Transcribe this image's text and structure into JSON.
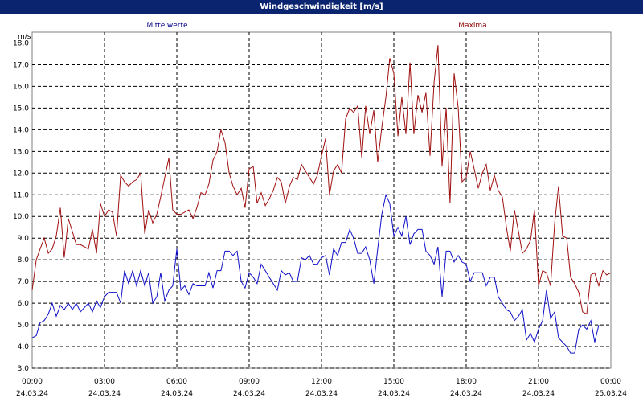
{
  "window": {
    "title": "Windgeschwindigkeit [m/s]"
  },
  "colors": {
    "titlebar": "#0a2470",
    "mean": "#1010c8",
    "max": "#a01010",
    "grid": "#000000"
  },
  "chart_data": {
    "type": "line",
    "title": "Windgeschwindigkeit [m/s]",
    "ylabel": "m/s",
    "ylim": [
      3.0,
      18.5
    ],
    "yticks": [
      "3,0",
      "4,0",
      "5,0",
      "6,0",
      "7,0",
      "8,0",
      "9,0",
      "10,0",
      "11,0",
      "12,0",
      "13,0",
      "14,0",
      "15,0",
      "16,0",
      "17,0",
      "18,0"
    ],
    "xticks": [
      {
        "time": "00:00",
        "date": "24.03.24"
      },
      {
        "time": "03:00",
        "date": "24.03.24"
      },
      {
        "time": "06:00",
        "date": "24.03.24"
      },
      {
        "time": "09:00",
        "date": "24.03.24"
      },
      {
        "time": "12:00",
        "date": "24.03.24"
      },
      {
        "time": "15:00",
        "date": "24.03.24"
      },
      {
        "time": "18:00",
        "date": "24.03.24"
      },
      {
        "time": "21:00",
        "date": "24.03.24"
      },
      {
        "time": "00:00",
        "date": "25.03.24"
      }
    ],
    "grid": true,
    "legend_position": "top",
    "x_hours": [
      0,
      0.17,
      0.33,
      0.5,
      0.67,
      0.83,
      1,
      1.17,
      1.33,
      1.5,
      1.67,
      1.83,
      2,
      2.17,
      2.33,
      2.5,
      2.67,
      2.83,
      3,
      3.17,
      3.33,
      3.5,
      3.67,
      3.83,
      4,
      4.17,
      4.33,
      4.5,
      4.67,
      4.83,
      5,
      5.17,
      5.33,
      5.5,
      5.67,
      5.83,
      6,
      6.17,
      6.33,
      6.5,
      6.67,
      6.83,
      7,
      7.17,
      7.33,
      7.5,
      7.67,
      7.83,
      8,
      8.17,
      8.33,
      8.5,
      8.67,
      8.83,
      9,
      9.17,
      9.33,
      9.5,
      9.67,
      9.83,
      10,
      10.17,
      10.33,
      10.5,
      10.67,
      10.83,
      11,
      11.17,
      11.33,
      11.5,
      11.67,
      11.83,
      12,
      12.17,
      12.33,
      12.5,
      12.67,
      12.83,
      13,
      13.17,
      13.33,
      13.5,
      13.67,
      13.83,
      14,
      14.17,
      14.33,
      14.5,
      14.67,
      14.83,
      15,
      15.17,
      15.33,
      15.5,
      15.67,
      15.83,
      16,
      16.17,
      16.33,
      16.5,
      16.67,
      16.83,
      17,
      17.17,
      17.33,
      17.5,
      17.67,
      17.83,
      18,
      18.17,
      18.33,
      18.5,
      18.67,
      18.83,
      19,
      19.17,
      19.33,
      19.5,
      19.67,
      19.83,
      20,
      20.17,
      20.33,
      20.5,
      20.67,
      20.83,
      21,
      21.17,
      21.33,
      21.5,
      21.67,
      21.83,
      22,
      22.17,
      22.33,
      22.5,
      22.67,
      22.83,
      23,
      23.17,
      23.33,
      23.5,
      23.67,
      23.83,
      24
    ],
    "series": [
      {
        "name": "Mittelwerte",
        "color": "#1010c8",
        "values": [
          4.4,
          4.5,
          5.1,
          5.2,
          5.5,
          6.0,
          5.4,
          5.9,
          5.7,
          6.0,
          5.7,
          6.0,
          5.6,
          5.8,
          6.0,
          5.6,
          6.1,
          5.8,
          6.3,
          6.5,
          6.5,
          6.5,
          6.0,
          7.5,
          6.9,
          7.5,
          6.8,
          7.5,
          6.8,
          7.4,
          6.0,
          6.3,
          7.4,
          6.1,
          6.6,
          6.8,
          8.5,
          6.6,
          6.8,
          6.4,
          6.9,
          6.8,
          6.8,
          6.8,
          7.4,
          6.7,
          7.5,
          7.5,
          8.4,
          8.4,
          8.2,
          8.4,
          7.0,
          6.7,
          7.4,
          7.2,
          6.9,
          7.8,
          7.5,
          7.2,
          6.9,
          6.6,
          7.5,
          7.3,
          7.4,
          7.0,
          7.0,
          8.1,
          8.0,
          8.2,
          7.8,
          7.8,
          8.1,
          8.2,
          7.3,
          8.5,
          8.2,
          8.8,
          8.8,
          9.4,
          9.0,
          8.3,
          8.3,
          8.6,
          8.0,
          6.9,
          8.5,
          10.1,
          11.0,
          10.6,
          9.1,
          9.5,
          9.1,
          10.0,
          8.7,
          9.2,
          9.4,
          9.4,
          8.4,
          8.2,
          7.8,
          8.6,
          6.3,
          8.4,
          8.4,
          7.9,
          8.2,
          7.9,
          7.8,
          7.0,
          7.4,
          7.4,
          7.4,
          6.8,
          7.2,
          7.2,
          6.3,
          6.0,
          5.7,
          5.6,
          5.2,
          5.4,
          5.7,
          4.3,
          4.6,
          4.2,
          4.8,
          5.2,
          6.6,
          5.3,
          5.6,
          4.4,
          4.2,
          4.0,
          3.7,
          3.7,
          4.8,
          5.0,
          4.8,
          5.2,
          4.2,
          5.0
        ]
      },
      {
        "name": "Maxima",
        "color": "#a01010",
        "values": [
          6.6,
          8.0,
          8.5,
          9.0,
          8.3,
          8.5,
          9.1,
          10.4,
          8.1,
          9.9,
          9.3,
          8.7,
          8.7,
          8.6,
          8.5,
          9.4,
          8.3,
          10.6,
          10.0,
          10.3,
          10.2,
          9.1,
          11.9,
          11.6,
          11.4,
          11.6,
          11.7,
          12.0,
          9.2,
          10.3,
          9.7,
          10.1,
          10.9,
          11.8,
          12.7,
          10.3,
          10.1,
          10.1,
          10.2,
          10.3,
          9.9,
          10.4,
          11.1,
          11.0,
          11.5,
          12.6,
          13.0,
          14.0,
          13.4,
          12.0,
          11.4,
          11.0,
          11.3,
          10.4,
          12.2,
          12.3,
          10.6,
          11.1,
          10.5,
          10.8,
          11.2,
          11.8,
          11.6,
          10.6,
          11.4,
          11.8,
          11.7,
          12.4,
          12.1,
          11.8,
          11.5,
          11.9,
          12.8,
          13.6,
          11.0,
          12.1,
          12.4,
          12.0,
          14.5,
          15.0,
          14.8,
          15.1,
          12.7,
          15.1,
          13.8,
          14.9,
          12.5,
          14.1,
          15.5,
          17.3,
          16.6,
          13.7,
          15.5,
          13.8,
          17.1,
          13.8,
          15.6,
          14.8,
          15.7,
          12.8,
          16.2,
          17.9,
          12.3,
          15.0,
          10.6,
          16.6,
          15.0,
          11.6,
          11.8,
          13.0,
          12.2,
          11.3,
          12.0,
          12.4,
          11.2,
          11.9,
          11.2,
          10.9,
          9.5,
          8.4,
          10.3,
          9.3,
          8.3,
          8.5,
          8.9,
          10.3,
          6.8,
          7.5,
          7.4,
          6.8,
          9.7,
          11.4,
          9.1,
          9.0,
          7.2,
          6.9,
          6.5,
          5.6,
          5.5,
          7.3,
          7.4,
          6.8,
          7.5,
          7.3,
          7.4
        ]
      }
    ]
  }
}
